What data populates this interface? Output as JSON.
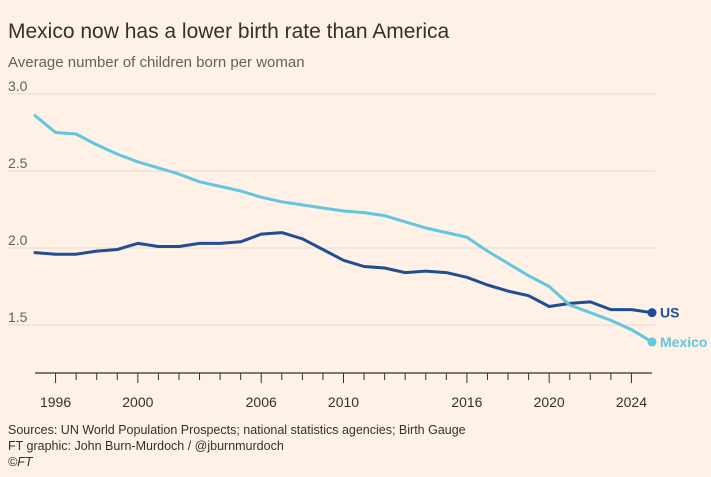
{
  "title": "Mexico now has a lower birth rate than America",
  "subtitle": "Average number of children born per woman",
  "footer": {
    "sources": "Sources: UN World Population Prospects; national statistics agencies; Birth Gauge",
    "graphic": "FT graphic: John Burn-Murdoch / @jburnmurdoch",
    "copyright": "©FT"
  },
  "colors": {
    "background": "#fff1e5",
    "grid": "#e6d9ce",
    "axis": "#33302e",
    "tick_label": "#66605c",
    "us": "#1f4e94",
    "mexico": "#62c6e0"
  },
  "chart_data": {
    "type": "line",
    "title": "Mexico now has a lower birth rate than America",
    "subtitle": "Average number of children born per woman",
    "xlabel": "",
    "ylabel": "",
    "xlim": [
      1995,
      2025
    ],
    "ylim": [
      1.3,
      3.0
    ],
    "y_ticks": [
      {
        "value": 1.5,
        "label": "1.5"
      },
      {
        "value": 2.0,
        "label": "2.0"
      },
      {
        "value": 2.5,
        "label": "2.5"
      },
      {
        "value": 3.0,
        "label": "3.0"
      }
    ],
    "x_ticks": [
      1996,
      1997,
      1998,
      1999,
      2000,
      2001,
      2002,
      2003,
      2004,
      2005,
      2006,
      2007,
      2008,
      2009,
      2010,
      2011,
      2012,
      2013,
      2014,
      2015,
      2016,
      2017,
      2018,
      2019,
      2020,
      2021,
      2022,
      2023,
      2024
    ],
    "x_tick_labels": [
      {
        "value": 1996,
        "label": "1996"
      },
      {
        "value": 2000,
        "label": "2000"
      },
      {
        "value": 2006,
        "label": "2006"
      },
      {
        "value": 2010,
        "label": "2010"
      },
      {
        "value": 2016,
        "label": "2016"
      },
      {
        "value": 2020,
        "label": "2020"
      },
      {
        "value": 2024,
        "label": "2024"
      }
    ],
    "grid": true,
    "legend": "direct labels at line ends",
    "x": [
      1995,
      1996,
      1997,
      1998,
      1999,
      2000,
      2001,
      2002,
      2003,
      2004,
      2005,
      2006,
      2007,
      2008,
      2009,
      2010,
      2011,
      2012,
      2013,
      2014,
      2015,
      2016,
      2017,
      2018,
      2019,
      2020,
      2021,
      2022,
      2023,
      2024,
      2025
    ],
    "series": [
      {
        "name": "US",
        "color": "#1f4e94",
        "values": [
          1.97,
          1.96,
          1.96,
          1.98,
          1.99,
          2.03,
          2.01,
          2.01,
          2.03,
          2.03,
          2.04,
          2.09,
          2.1,
          2.06,
          1.99,
          1.92,
          1.88,
          1.87,
          1.84,
          1.85,
          1.84,
          1.81,
          1.76,
          1.72,
          1.69,
          1.62,
          1.64,
          1.65,
          1.6,
          1.6,
          1.58
        ]
      },
      {
        "name": "Mexico",
        "color": "#62c6e0",
        "values": [
          2.86,
          2.75,
          2.74,
          2.67,
          2.61,
          2.56,
          2.52,
          2.48,
          2.43,
          2.4,
          2.37,
          2.33,
          2.3,
          2.28,
          2.26,
          2.24,
          2.23,
          2.21,
          2.17,
          2.13,
          2.1,
          2.07,
          1.98,
          1.9,
          1.82,
          1.75,
          1.63,
          1.58,
          1.53,
          1.47,
          1.39
        ]
      }
    ]
  }
}
